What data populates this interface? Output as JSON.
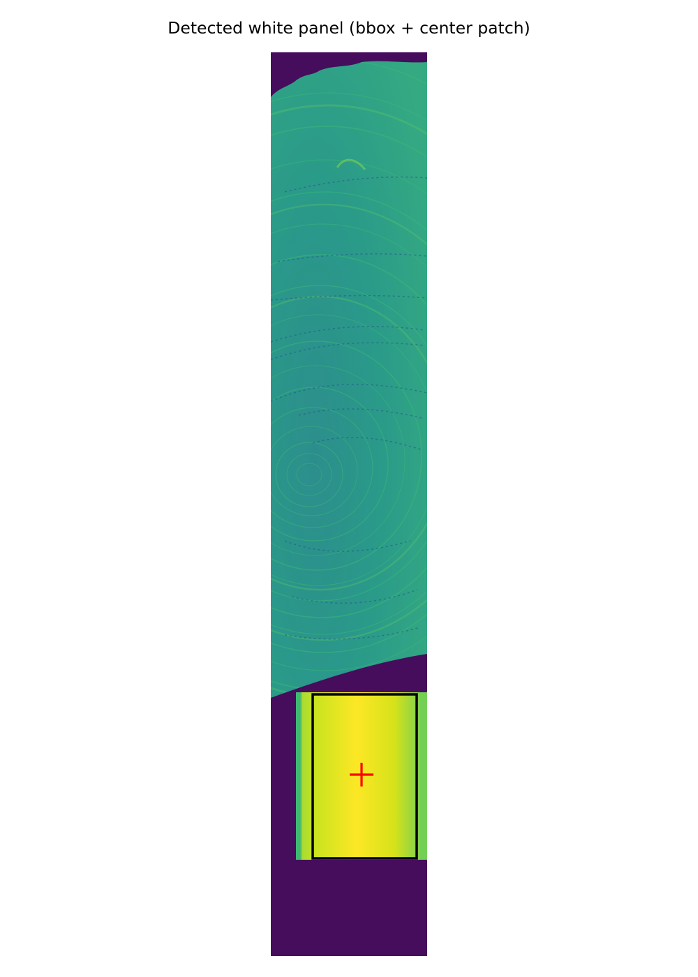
{
  "figure": {
    "title": "Detected white panel (bbox + center patch)"
  },
  "image": {
    "colormap": "viridis",
    "subject": "wood cross-section with growth rings above a bright white reference panel",
    "colors": {
      "background": "#450d5c",
      "wood_base": "#2a9a89",
      "wood_bright": "#3fbd76",
      "panel_bright": "#fde725",
      "panel_edge": "#7fd15a",
      "bbox_stroke": "#000000",
      "center_marker": "#ff0000"
    }
  },
  "overlays": {
    "bbox": {
      "label": "bbox",
      "stroke": "#000000"
    },
    "center_marker": {
      "label": "center patch",
      "symbol": "+",
      "color": "#ff0000"
    }
  }
}
